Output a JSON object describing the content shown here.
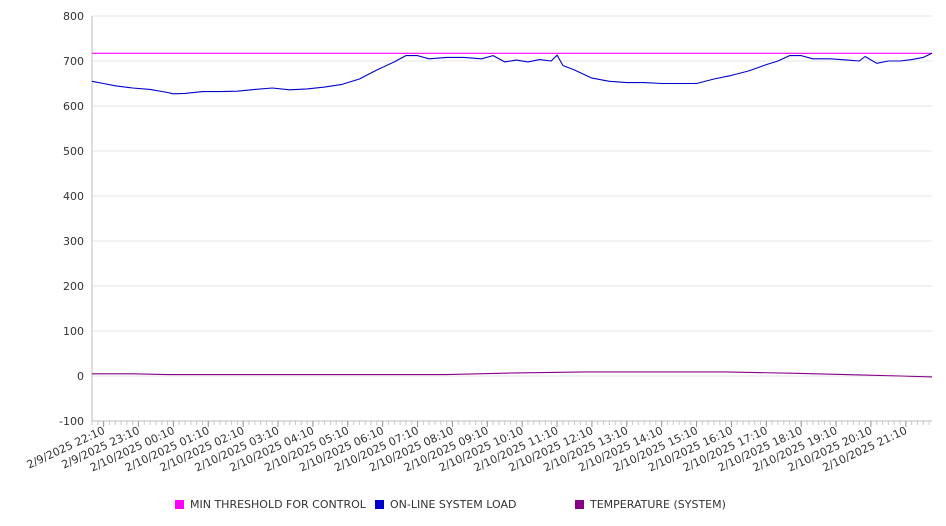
{
  "chart_data": {
    "type": "line",
    "title": "",
    "xlabel": "",
    "ylabel": "",
    "ylim": [
      -100,
      800
    ],
    "yticks": [
      -100,
      0,
      100,
      200,
      300,
      400,
      500,
      600,
      700,
      800
    ],
    "xlim": [
      "2/9/2025 21:50",
      "2/10/2025 21:55"
    ],
    "xtick_labels": [
      "2/9/2025 22:10",
      "2/9/2025 23:10",
      "2/10/2025 00:10",
      "2/10/2025 01:10",
      "2/10/2025 02:10",
      "2/10/2025 03:10",
      "2/10/2025 04:10",
      "2/10/2025 05:10",
      "2/10/2025 06:10",
      "2/10/2025 07:10",
      "2/10/2025 08:10",
      "2/10/2025 09:10",
      "2/10/2025 10:10",
      "2/10/2025 11:10",
      "2/10/2025 12:10",
      "2/10/2025 13:10",
      "2/10/2025 14:10",
      "2/10/2025 15:10",
      "2/10/2025 16:10",
      "2/10/2025 17:10",
      "2/10/2025 18:10",
      "2/10/2025 19:10",
      "2/10/2025 20:10",
      "2/10/2025 21:10"
    ],
    "grid": true,
    "legend_position": "bottom",
    "series": [
      {
        "name": "MIN THRESHOLD FOR CONTROL",
        "color": "#ff00ff",
        "x": [
          "2/9/2025 21:50",
          "2/10/2025 21:55"
        ],
        "y": [
          717,
          717
        ]
      },
      {
        "name": "ON-LINE SYSTEM LOAD",
        "color": "#0000cc",
        "x": [
          "2/9/2025 21:50",
          "2/9/2025 22:10",
          "2/9/2025 22:30",
          "2/9/2025 23:00",
          "2/9/2025 23:30",
          "2/10/2025 00:00",
          "2/10/2025 00:10",
          "2/10/2025 00:30",
          "2/10/2025 01:00",
          "2/10/2025 01:30",
          "2/10/2025 02:00",
          "2/10/2025 02:30",
          "2/10/2025 03:00",
          "2/10/2025 03:30",
          "2/10/2025 04:00",
          "2/10/2025 04:30",
          "2/10/2025 05:00",
          "2/10/2025 05:30",
          "2/10/2025 06:00",
          "2/10/2025 06:30",
          "2/10/2025 06:50",
          "2/10/2025 07:10",
          "2/10/2025 07:30",
          "2/10/2025 08:00",
          "2/10/2025 08:30",
          "2/10/2025 09:00",
          "2/10/2025 09:20",
          "2/10/2025 09:40",
          "2/10/2025 10:00",
          "2/10/2025 10:20",
          "2/10/2025 10:40",
          "2/10/2025 11:00",
          "2/10/2025 11:10",
          "2/10/2025 11:20",
          "2/10/2025 11:40",
          "2/10/2025 12:10",
          "2/10/2025 12:40",
          "2/10/2025 13:10",
          "2/10/2025 13:40",
          "2/10/2025 14:10",
          "2/10/2025 14:40",
          "2/10/2025 15:10",
          "2/10/2025 15:40",
          "2/10/2025 16:10",
          "2/10/2025 16:40",
          "2/10/2025 17:10",
          "2/10/2025 17:30",
          "2/10/2025 17:50",
          "2/10/2025 18:10",
          "2/10/2025 18:30",
          "2/10/2025 19:00",
          "2/10/2025 19:30",
          "2/10/2025 19:50",
          "2/10/2025 20:00",
          "2/10/2025 20:20",
          "2/10/2025 20:40",
          "2/10/2025 21:00",
          "2/10/2025 21:20",
          "2/10/2025 21:40",
          "2/10/2025 21:55"
        ],
        "y": [
          655,
          650,
          645,
          640,
          637,
          630,
          627,
          628,
          632,
          632,
          633,
          637,
          640,
          636,
          638,
          642,
          648,
          660,
          680,
          698,
          712,
          712,
          705,
          708,
          708,
          705,
          712,
          698,
          702,
          698,
          703,
          700,
          713,
          690,
          680,
          662,
          655,
          652,
          652,
          650,
          650,
          650,
          660,
          668,
          678,
          692,
          700,
          712,
          712,
          705,
          705,
          702,
          700,
          710,
          695,
          700,
          700,
          703,
          708,
          717
        ]
      },
      {
        "name": "TEMPERATURE (SYSTEM)",
        "color": "#880088",
        "x": [
          "2/9/2025 21:50",
          "2/9/2025 23:00",
          "2/10/2025 00:00",
          "2/10/2025 03:00",
          "2/10/2025 06:00",
          "2/10/2025 08:00",
          "2/10/2025 10:00",
          "2/10/2025 12:00",
          "2/10/2025 14:00",
          "2/10/2025 16:00",
          "2/10/2025 18:00",
          "2/10/2025 19:00",
          "2/10/2025 20:00",
          "2/10/2025 21:00",
          "2/10/2025 21:55"
        ],
        "y": [
          5,
          5,
          3,
          3,
          3,
          3,
          7,
          9,
          9,
          9,
          6,
          4,
          2,
          0,
          -2
        ]
      }
    ]
  }
}
